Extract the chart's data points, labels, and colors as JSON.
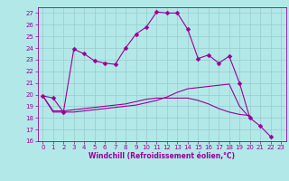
{
  "xlabel": "Windchill (Refroidissement éolien,°C)",
  "background_color": "#b3e8e8",
  "grid_color": "#99cccc",
  "line_color": "#990099",
  "line2": [
    19.9,
    19.7,
    18.5,
    23.9,
    23.5,
    22.9,
    22.7,
    22.6,
    24.0,
    25.2,
    25.8,
    27.1,
    27.0,
    27.0,
    25.6,
    23.1,
    23.4,
    22.7,
    23.3,
    21.0,
    18.0,
    17.3,
    16.4
  ],
  "line2_x": [
    0,
    1,
    2,
    3,
    4,
    5,
    6,
    7,
    8,
    9,
    10,
    11,
    12,
    13,
    14,
    15,
    16,
    17,
    18,
    19,
    20,
    21,
    22
  ],
  "line3": [
    19.9,
    18.5,
    18.5,
    18.5,
    18.6,
    18.7,
    18.8,
    18.9,
    19.0,
    19.1,
    19.3,
    19.5,
    19.8,
    20.2,
    20.5,
    20.6,
    20.7,
    20.8,
    20.9,
    19.0,
    18.0
  ],
  "line3_x": [
    0,
    1,
    2,
    3,
    4,
    5,
    6,
    7,
    8,
    9,
    10,
    11,
    12,
    13,
    14,
    15,
    16,
    17,
    18,
    19,
    20
  ],
  "line4": [
    19.9,
    18.6,
    18.6,
    18.7,
    18.8,
    18.9,
    19.0,
    19.1,
    19.2,
    19.4,
    19.6,
    19.7,
    19.7,
    19.7,
    19.7,
    19.5,
    19.2,
    18.8,
    18.5,
    18.3,
    18.2
  ],
  "line4_x": [
    0,
    1,
    2,
    3,
    4,
    5,
    6,
    7,
    8,
    9,
    10,
    11,
    12,
    13,
    14,
    15,
    16,
    17,
    18,
    19,
    20
  ],
  "ylim": [
    16,
    27.5
  ],
  "xlim": [
    -0.5,
    23.5
  ],
  "yticks": [
    16,
    17,
    18,
    19,
    20,
    21,
    22,
    23,
    24,
    25,
    26,
    27
  ],
  "xticks": [
    0,
    1,
    2,
    3,
    4,
    5,
    6,
    7,
    8,
    9,
    10,
    11,
    12,
    13,
    14,
    15,
    16,
    17,
    18,
    19,
    20,
    21,
    22,
    23
  ]
}
